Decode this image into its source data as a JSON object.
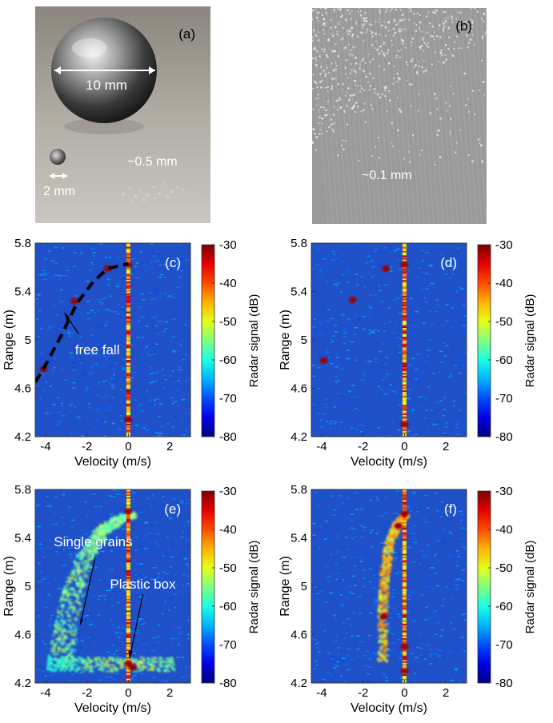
{
  "photos": [
    {
      "label": "(a)",
      "annotations": [
        "10 mm",
        "~0.5 mm",
        "2 mm"
      ]
    },
    {
      "label": "(b)",
      "annotations": [
        "~0.1 mm"
      ]
    }
  ],
  "chart_data": [
    {
      "panel": "(c)",
      "type": "heatmap",
      "xlabel": "Velocity (m/s)",
      "ylabel": "Range (m)",
      "xlim": [
        -4.5,
        3
      ],
      "ylim": [
        4.2,
        5.8
      ],
      "xticks": [
        -4,
        -2,
        0,
        2
      ],
      "yticks": [
        4.2,
        4.6,
        5,
        5.4,
        5.8
      ],
      "colorbar": {
        "label": "Radar signal (dB)",
        "ticks": [
          -30,
          -40,
          -50,
          -60,
          -70,
          -80
        ],
        "range": [
          -80,
          -30
        ]
      },
      "annotations": [
        "free fall"
      ],
      "features": {
        "stationary_line_velocity": 0,
        "free_fall_curve": [
          {
            "v": -4.1,
            "r": 4.76
          },
          {
            "v": -3.2,
            "r": 5.05
          },
          {
            "v": -2.5,
            "r": 5.3
          },
          {
            "v": -1.7,
            "r": 5.48
          },
          {
            "v": -1.0,
            "r": 5.59
          },
          {
            "v": 0.0,
            "r": 5.63
          }
        ],
        "hot_spots": [
          {
            "v": -4.1,
            "r": 4.76
          },
          {
            "v": -2.6,
            "r": 5.32
          },
          {
            "v": -1.0,
            "r": 5.59
          },
          {
            "v": 0.0,
            "r": 5.62
          },
          {
            "v": 0.0,
            "r": 4.34
          }
        ]
      }
    },
    {
      "panel": "(d)",
      "type": "heatmap",
      "xlabel": "Velocity (m/s)",
      "ylabel": "Range (m)",
      "xlim": [
        -4.5,
        3
      ],
      "ylim": [
        4.2,
        5.8
      ],
      "xticks": [
        -4,
        -2,
        0,
        2
      ],
      "yticks": [
        4.2,
        4.6,
        5,
        5.4,
        5.8
      ],
      "colorbar": {
        "label": "Radar signal (dB)",
        "ticks": [
          -30,
          -40,
          -50,
          -60,
          -70,
          -80
        ],
        "range": [
          -80,
          -30
        ]
      },
      "annotations": [],
      "features": {
        "stationary_line_velocity": 0,
        "hot_spots": [
          {
            "v": -0.9,
            "r": 5.59
          },
          {
            "v": -2.5,
            "r": 5.33
          },
          {
            "v": -3.9,
            "r": 4.83
          },
          {
            "v": 0.0,
            "r": 5.62
          },
          {
            "v": 0.0,
            "r": 4.3
          }
        ]
      }
    },
    {
      "panel": "(e)",
      "type": "heatmap",
      "xlabel": "Velocity (m/s)",
      "ylabel": "Range (m)",
      "xlim": [
        -4.5,
        3
      ],
      "ylim": [
        4.2,
        5.8
      ],
      "xticks": [
        -4,
        -2,
        0,
        2
      ],
      "yticks": [
        4.2,
        4.6,
        5,
        5.4,
        5.8
      ],
      "colorbar": {
        "label": "Radar signal (dB)",
        "ticks": [
          -30,
          -40,
          -50,
          -60,
          -70,
          -80
        ],
        "range": [
          -80,
          -30
        ]
      },
      "annotations": [
        "Single grains",
        "Plastic box"
      ],
      "features": {
        "stationary_line_velocity": 0,
        "grain_cloud_curve": [
          {
            "v": -4.0,
            "r": 4.35
          },
          {
            "v": -3.4,
            "r": 4.9
          },
          {
            "v": -2.6,
            "r": 5.28
          },
          {
            "v": -1.6,
            "r": 5.5
          },
          {
            "v": -0.6,
            "r": 5.6
          },
          {
            "v": 0.0,
            "r": 5.62
          }
        ],
        "hot_spots": [
          {
            "v": 0.0,
            "r": 5.62
          },
          {
            "v": 0.0,
            "r": 4.36
          },
          {
            "v": 0.2,
            "r": 4.33
          }
        ]
      }
    },
    {
      "panel": "(f)",
      "type": "heatmap",
      "xlabel": "Velocity (m/s)",
      "ylabel": "Range (m)",
      "xlim": [
        -4.5,
        3
      ],
      "ylim": [
        4.2,
        5.8
      ],
      "xticks": [
        -4,
        -2,
        0,
        2
      ],
      "yticks": [
        4.2,
        4.6,
        5,
        5.4,
        5.8
      ],
      "colorbar": {
        "label": "Radar signal (dB)",
        "ticks": [
          -30,
          -40,
          -50,
          -60,
          -70,
          -80
        ],
        "range": [
          -80,
          -30
        ]
      },
      "annotations": [],
      "features": {
        "stationary_line_velocity": 0,
        "stream_band": [
          {
            "v": -1.1,
            "r": 4.38
          },
          {
            "v": -1.1,
            "r": 4.8
          },
          {
            "v": -1.0,
            "r": 5.1
          },
          {
            "v": -0.8,
            "r": 5.35
          },
          {
            "v": -0.4,
            "r": 5.52
          },
          {
            "v": 0.0,
            "r": 5.6
          }
        ],
        "hot_spots": [
          {
            "v": 0.0,
            "r": 5.6
          },
          {
            "v": -0.3,
            "r": 5.5
          },
          {
            "v": -1.0,
            "r": 4.75
          },
          {
            "v": 0.0,
            "r": 4.5
          },
          {
            "v": 0.0,
            "r": 4.3
          }
        ]
      }
    }
  ]
}
